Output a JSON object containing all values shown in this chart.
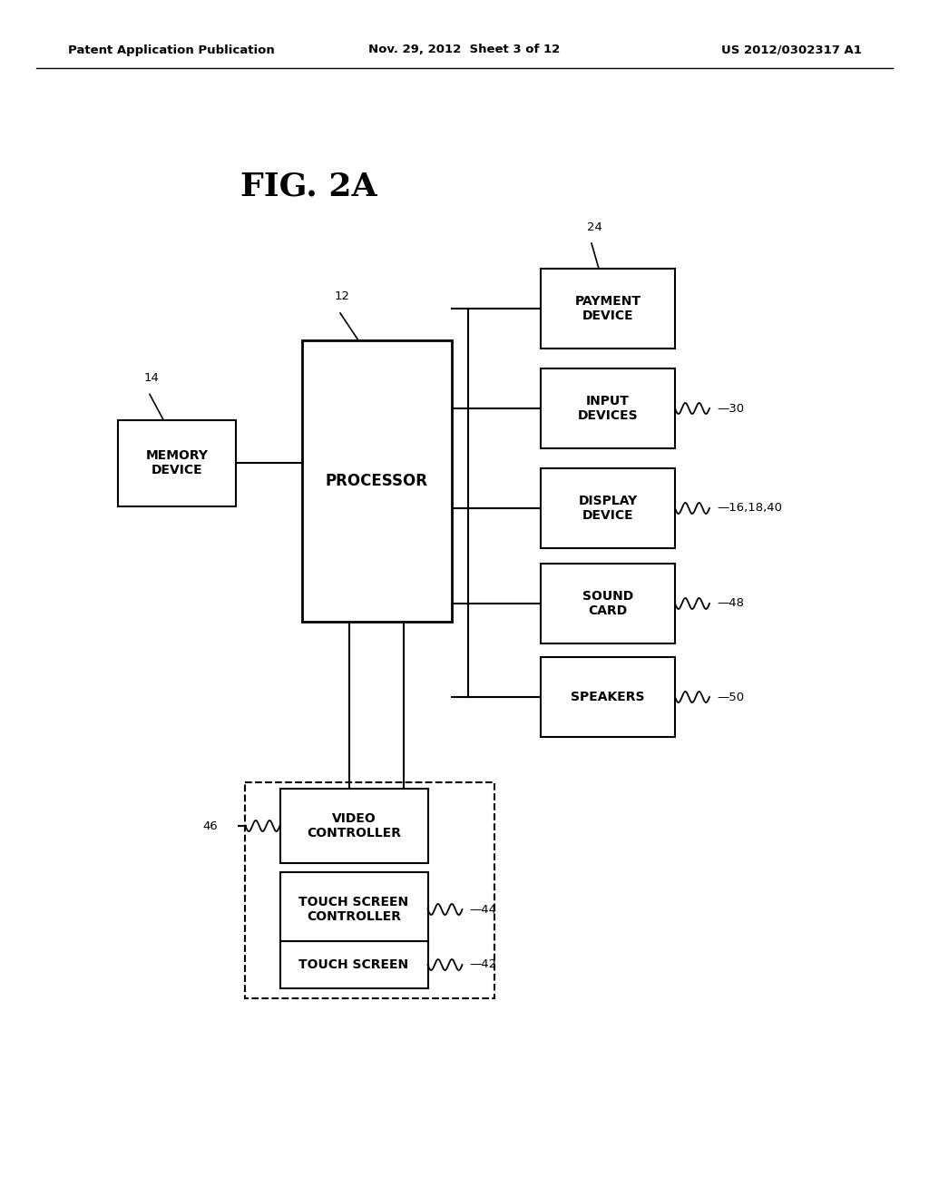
{
  "background_color": "#ffffff",
  "header_left": "Patent Application Publication",
  "header_center": "Nov. 29, 2012  Sheet 3 of 12",
  "header_right": "US 2012/0302317 A1",
  "fig_title": "FIG. 2A"
}
